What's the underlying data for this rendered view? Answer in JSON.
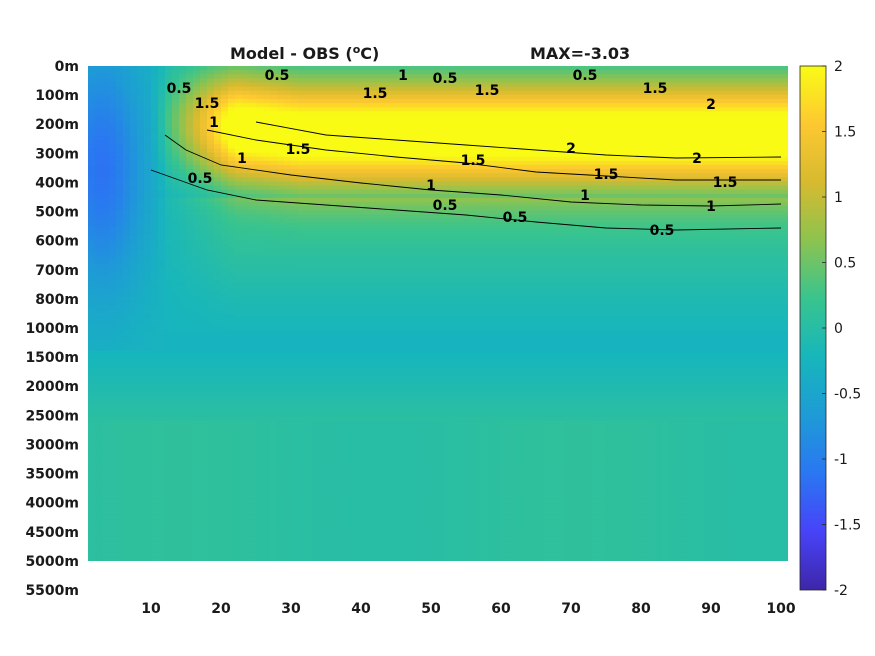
{
  "chart_data": {
    "type": "heatmap",
    "title": "Model - OBS (",
    "title_sup": "o",
    "title_unit": "C)",
    "max_label": "MAX=-3.03",
    "x": {
      "min": 1,
      "max": 101,
      "ticks": [
        10,
        20,
        30,
        40,
        50,
        60,
        70,
        80,
        90,
        100
      ]
    },
    "y_depth_labels": [
      "0m",
      "100m",
      "200m",
      "300m",
      "400m",
      "500m",
      "600m",
      "700m",
      "800m",
      "1000m",
      "1500m",
      "2000m",
      "2500m",
      "3000m",
      "3500m",
      "4000m",
      "4500m",
      "5000m",
      "5500m"
    ],
    "data_bottom_label": "5000m",
    "colorbar": {
      "min": -2,
      "max": 2,
      "ticks": [
        "2",
        "1.5",
        "1",
        "0.5",
        "0",
        "-0.5",
        "-1",
        "-1.5",
        "-2"
      ],
      "colormap": "parula",
      "stops": [
        "#3e26a8",
        "#4743f8",
        "#2a77f2",
        "#1e9bd6",
        "#17b6bc",
        "#38c48f",
        "#8cc350",
        "#d7ba2f",
        "#fdc831",
        "#f9fb15"
      ]
    },
    "contours": [
      {
        "level": 0.5,
        "label": "0.5",
        "points": [
          [
            10,
            170
          ],
          [
            14,
            180
          ],
          [
            18,
            190
          ],
          [
            25,
            200
          ],
          [
            35,
            205
          ],
          [
            45,
            210
          ],
          [
            55,
            215
          ],
          [
            65,
            222
          ],
          [
            75,
            228
          ],
          [
            85,
            230
          ],
          [
            100,
            228
          ]
        ]
      },
      {
        "level": 1,
        "label": "1",
        "points": [
          [
            12,
            135
          ],
          [
            15,
            150
          ],
          [
            20,
            165
          ],
          [
            30,
            175
          ],
          [
            40,
            183
          ],
          [
            50,
            190
          ],
          [
            60,
            195
          ],
          [
            70,
            202
          ],
          [
            80,
            205
          ],
          [
            90,
            206
          ],
          [
            100,
            204
          ]
        ]
      },
      {
        "level": 1.5,
        "label": "1.5",
        "points": [
          [
            18,
            130
          ],
          [
            25,
            140
          ],
          [
            35,
            150
          ],
          [
            45,
            157
          ],
          [
            55,
            163
          ],
          [
            65,
            172
          ],
          [
            75,
            176
          ],
          [
            85,
            180
          ],
          [
            100,
            180
          ]
        ]
      },
      {
        "level": 2,
        "label": "2",
        "points": [
          [
            25,
            122
          ],
          [
            35,
            135
          ],
          [
            45,
            140
          ],
          [
            55,
            145
          ],
          [
            65,
            150
          ],
          [
            75,
            155
          ],
          [
            85,
            158
          ],
          [
            100,
            157
          ]
        ]
      }
    ],
    "labels_on_contours": [
      {
        "text": "0.5",
        "x": 17,
        "y": 178
      },
      {
        "text": "0.5",
        "x": 52,
        "y": 205
      },
      {
        "text": "0.5",
        "x": 62,
        "y": 217
      },
      {
        "text": "0.5",
        "x": 83,
        "y": 230
      },
      {
        "text": "1",
        "x": 23,
        "y": 158
      },
      {
        "text": "1",
        "x": 50,
        "y": 185
      },
      {
        "text": "1",
        "x": 72,
        "y": 195
      },
      {
        "text": "1",
        "x": 90,
        "y": 206
      },
      {
        "text": "1.5",
        "x": 31,
        "y": 149
      },
      {
        "text": "1.5",
        "x": 56,
        "y": 160
      },
      {
        "text": "1.5",
        "x": 75,
        "y": 174
      },
      {
        "text": "1.5",
        "x": 92,
        "y": 182
      },
      {
        "text": "2",
        "x": 70,
        "y": 148
      },
      {
        "text": "2",
        "x": 88,
        "y": 158
      },
      {
        "text": "0.5",
        "x": 28,
        "y": 75
      },
      {
        "text": "1",
        "x": 46,
        "y": 75
      },
      {
        "text": "0.5",
        "x": 52,
        "y": 78
      },
      {
        "text": "1.5",
        "x": 42,
        "y": 93
      },
      {
        "text": "1.5",
        "x": 58,
        "y": 90
      },
      {
        "text": "1.5",
        "x": 82,
        "y": 88
      },
      {
        "text": "0.5",
        "x": 72,
        "y": 75
      },
      {
        "text": "2",
        "x": 90,
        "y": 104
      },
      {
        "text": "1.5",
        "x": 18,
        "y": 103
      },
      {
        "text": "0.5",
        "x": 14,
        "y": 88
      },
      {
        "text": "1",
        "x": 19,
        "y": 122
      }
    ]
  }
}
